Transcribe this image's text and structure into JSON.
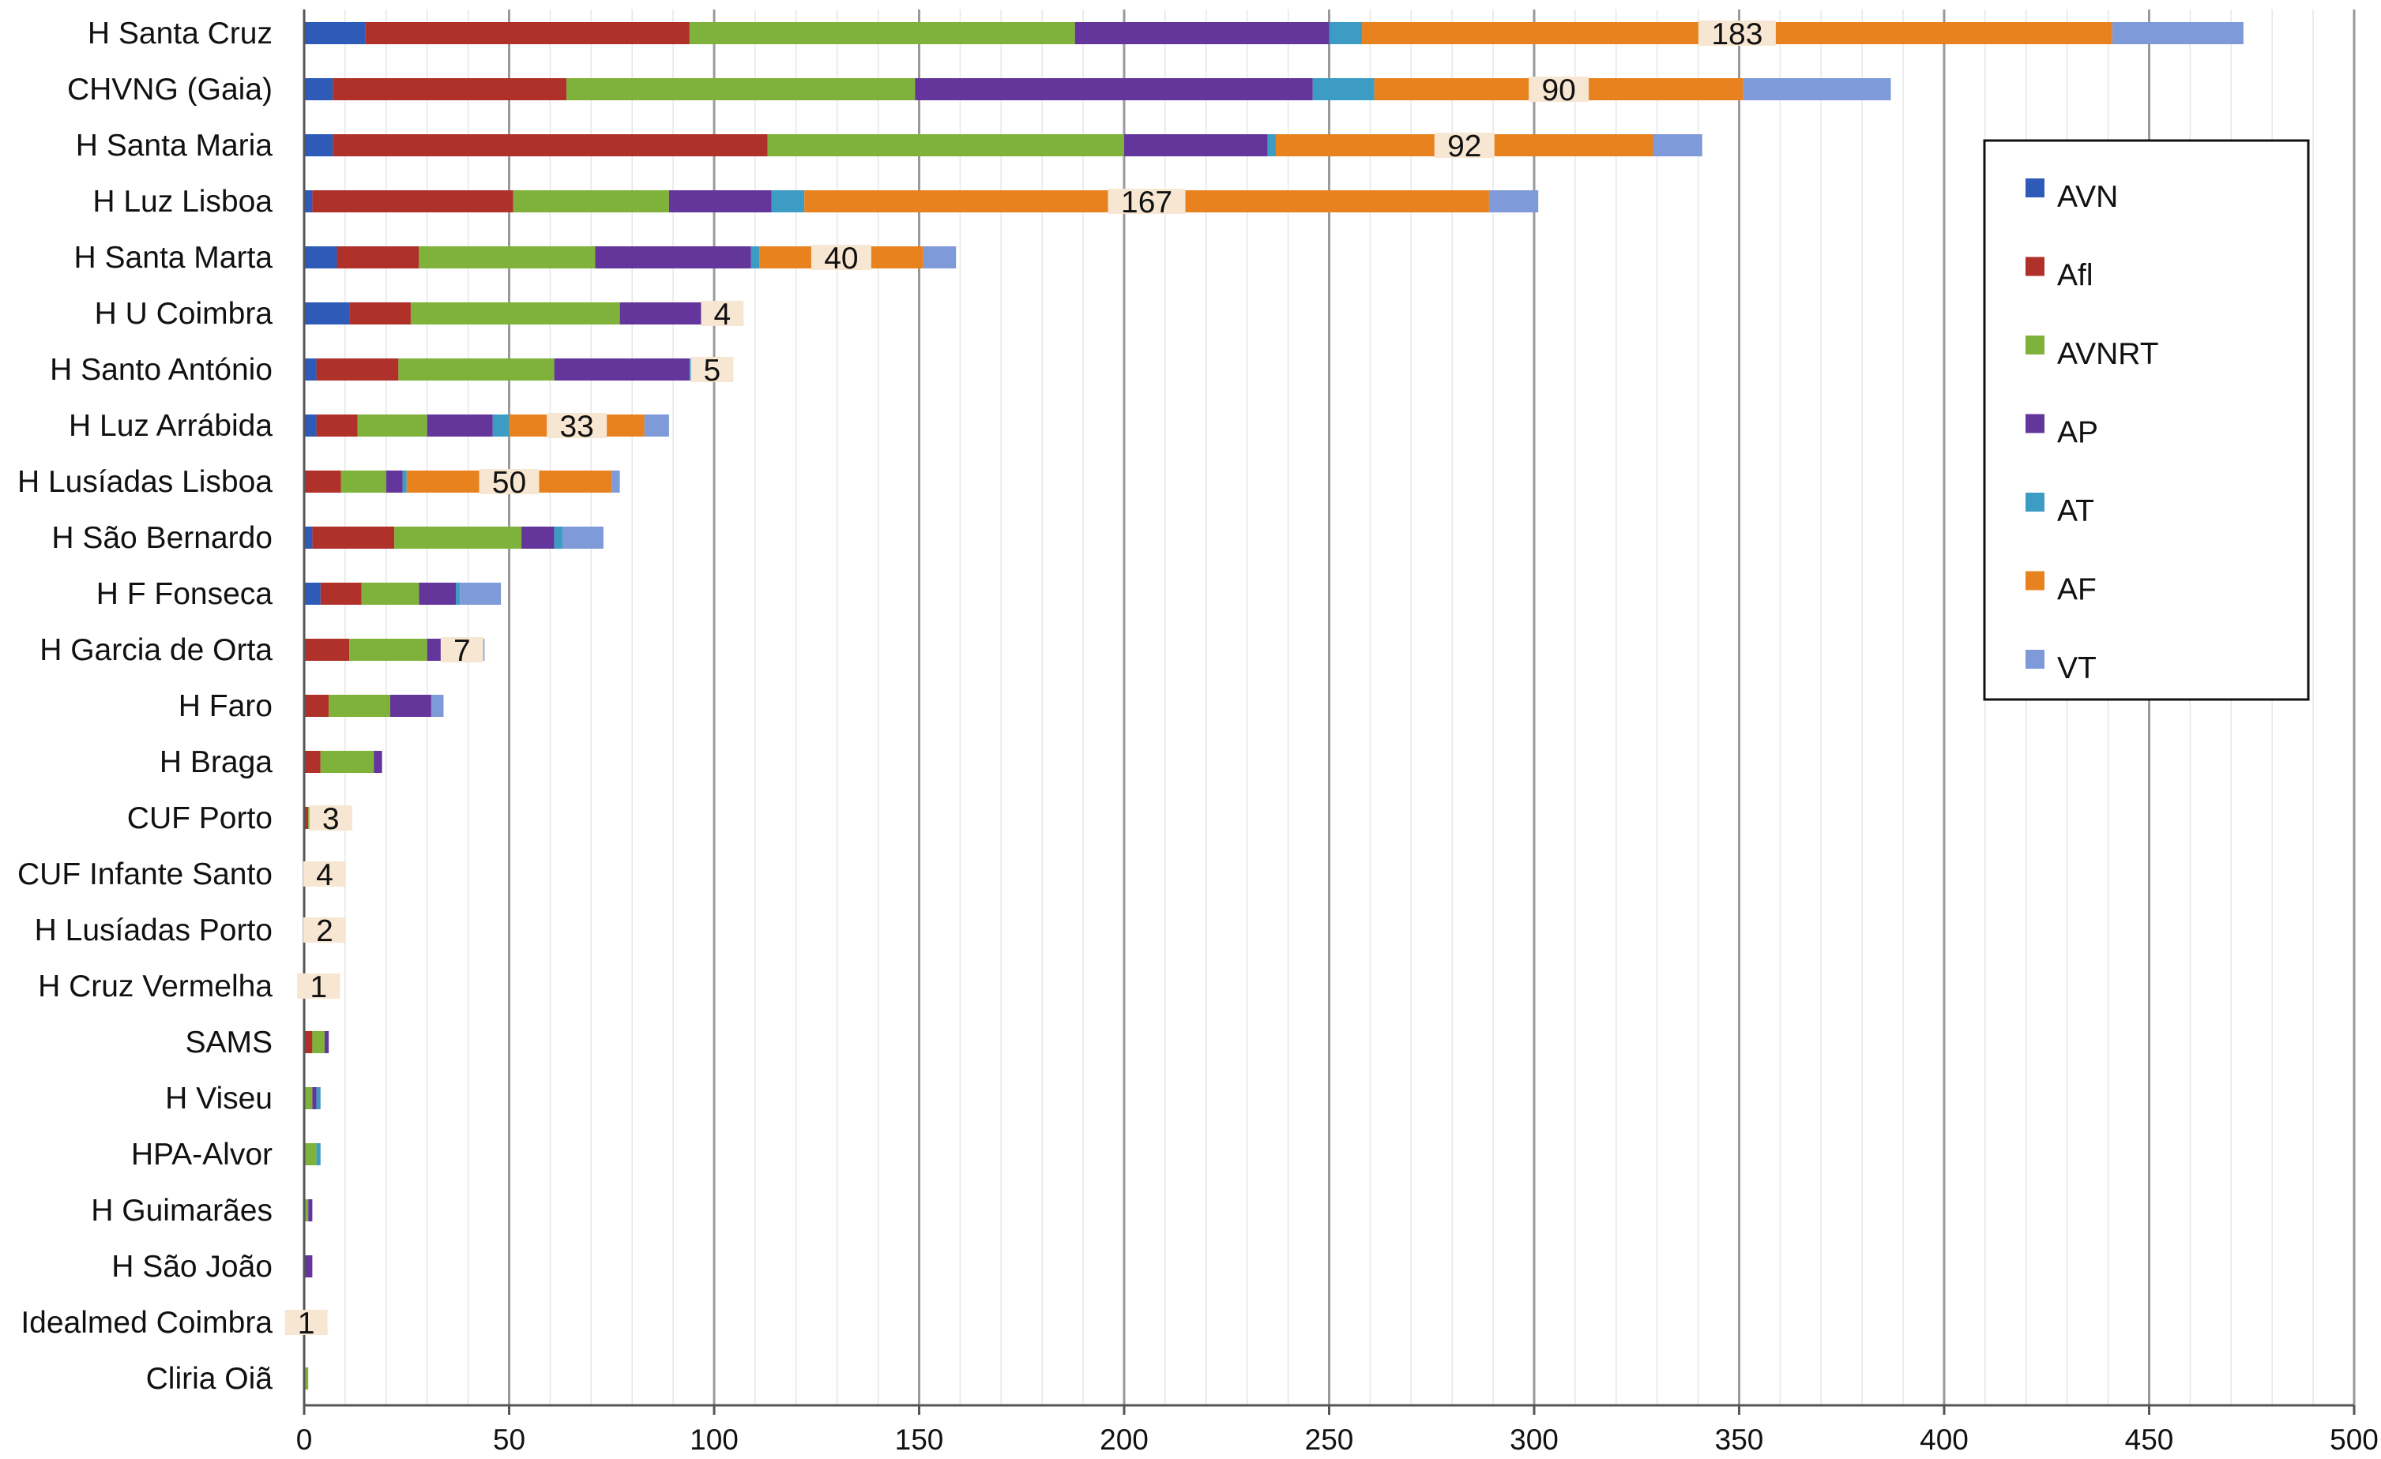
{
  "chart_data": {
    "type": "bar",
    "orientation": "horizontal",
    "stacked": true,
    "categories": [
      "H Santa Cruz",
      "CHVNG (Gaia)",
      "H Santa Maria",
      "H Luz Lisboa",
      "H Santa Marta",
      "H U Coimbra",
      "H Santo António",
      "H Luz Arrábida",
      "H Lusíadas Lisboa",
      "H São Bernardo",
      "H F Fonseca",
      "H Garcia de Orta",
      "H Faro",
      "H Braga",
      "CUF Porto",
      "CUF Infante Santo",
      "H Lusíadas Porto",
      "H Cruz Vermelha",
      "SAMS",
      "H Viseu",
      "HPA-Alvor",
      "H Guimarães",
      "H São João",
      "Idealmed Coimbra",
      "Cliria Oiã"
    ],
    "series": [
      {
        "name": "AVN",
        "color": "#2e5bb8",
        "values": [
          15,
          7,
          7,
          2,
          8,
          11,
          3,
          3,
          0,
          2,
          4,
          0,
          0,
          0,
          0,
          0,
          0,
          0,
          0,
          0,
          0,
          0,
          0,
          0,
          0
        ]
      },
      {
        "name": "Afl",
        "color": "#b0302a",
        "values": [
          79,
          57,
          106,
          49,
          20,
          15,
          20,
          10,
          9,
          20,
          10,
          11,
          6,
          4,
          1,
          0,
          0,
          2,
          2,
          0,
          0,
          0,
          0,
          0,
          0
        ]
      },
      {
        "name": "AVNRT",
        "color": "#7fb23a",
        "values": [
          94,
          85,
          87,
          38,
          43,
          51,
          38,
          17,
          11,
          31,
          14,
          19,
          15,
          13,
          2,
          3,
          4,
          1,
          3,
          2,
          3,
          1,
          0,
          0,
          1
        ]
      },
      {
        "name": "AP",
        "color": "#64359a",
        "values": [
          62,
          97,
          35,
          25,
          38,
          21,
          33,
          16,
          4,
          8,
          9,
          5,
          10,
          2,
          2,
          0,
          0,
          0,
          1,
          1,
          0,
          1,
          2,
          0,
          0
        ]
      },
      {
        "name": "AT",
        "color": "#3d9cc4",
        "values": [
          8,
          15,
          2,
          8,
          2,
          2,
          3,
          4,
          1,
          2,
          1,
          0,
          0,
          0,
          0,
          0,
          0,
          0,
          0,
          1,
          1,
          0,
          0,
          0,
          0
        ]
      },
      {
        "name": "AF",
        "color": "#e8821e",
        "values": [
          183,
          90,
          92,
          167,
          40,
          4,
          5,
          33,
          50,
          0,
          0,
          7,
          0,
          0,
          3,
          4,
          2,
          1,
          0,
          0,
          0,
          0,
          0,
          1,
          0
        ]
      },
      {
        "name": "VT",
        "color": "#7f9ad8",
        "values": [
          32,
          36,
          12,
          12,
          8,
          0,
          0,
          6,
          2,
          10,
          10,
          2,
          3,
          0,
          0,
          0,
          0,
          0,
          0,
          0,
          0,
          0,
          0,
          0,
          0
        ]
      }
    ],
    "data_labels": [
      {
        "category": "H Santa Cruz",
        "series": "AF",
        "text": "183"
      },
      {
        "category": "CHVNG (Gaia)",
        "series": "AF",
        "text": "90"
      },
      {
        "category": "H Santa Maria",
        "series": "AF",
        "text": "92"
      },
      {
        "category": "H Luz Lisboa",
        "series": "AF",
        "text": "167"
      },
      {
        "category": "H Santa Marta",
        "series": "AF",
        "text": "40"
      },
      {
        "category": "H U Coimbra",
        "series": "AF",
        "text": "4"
      },
      {
        "category": "H Santo António",
        "series": "AF",
        "text": "5"
      },
      {
        "category": "H Luz Arrábida",
        "series": "AF",
        "text": "33"
      },
      {
        "category": "H Lusíadas Lisboa",
        "series": "AF",
        "text": "50"
      },
      {
        "category": "H Garcia de Orta",
        "series": "AF",
        "text": "7"
      },
      {
        "category": "CUF Porto",
        "series": "AF",
        "text": "3"
      },
      {
        "category": "CUF Infante Santo",
        "series": "AF",
        "text": "4"
      },
      {
        "category": "H Lusíadas Porto",
        "series": "AF",
        "text": "2"
      },
      {
        "category": "H Cruz Vermelha",
        "series": "AF",
        "text": "1"
      },
      {
        "category": "Idealmed Coimbra",
        "series": "AF",
        "text": "1"
      }
    ],
    "title": "",
    "xlabel": "",
    "ylabel": "",
    "xlim": [
      0,
      500
    ],
    "xticks": [
      0,
      50,
      100,
      150,
      200,
      250,
      300,
      350,
      400,
      450,
      500
    ],
    "grid": true,
    "legend": {
      "position": "right",
      "entries": [
        "AVN",
        "Afl",
        "AVNRT",
        "AP",
        "AT",
        "AF",
        "VT"
      ]
    }
  }
}
